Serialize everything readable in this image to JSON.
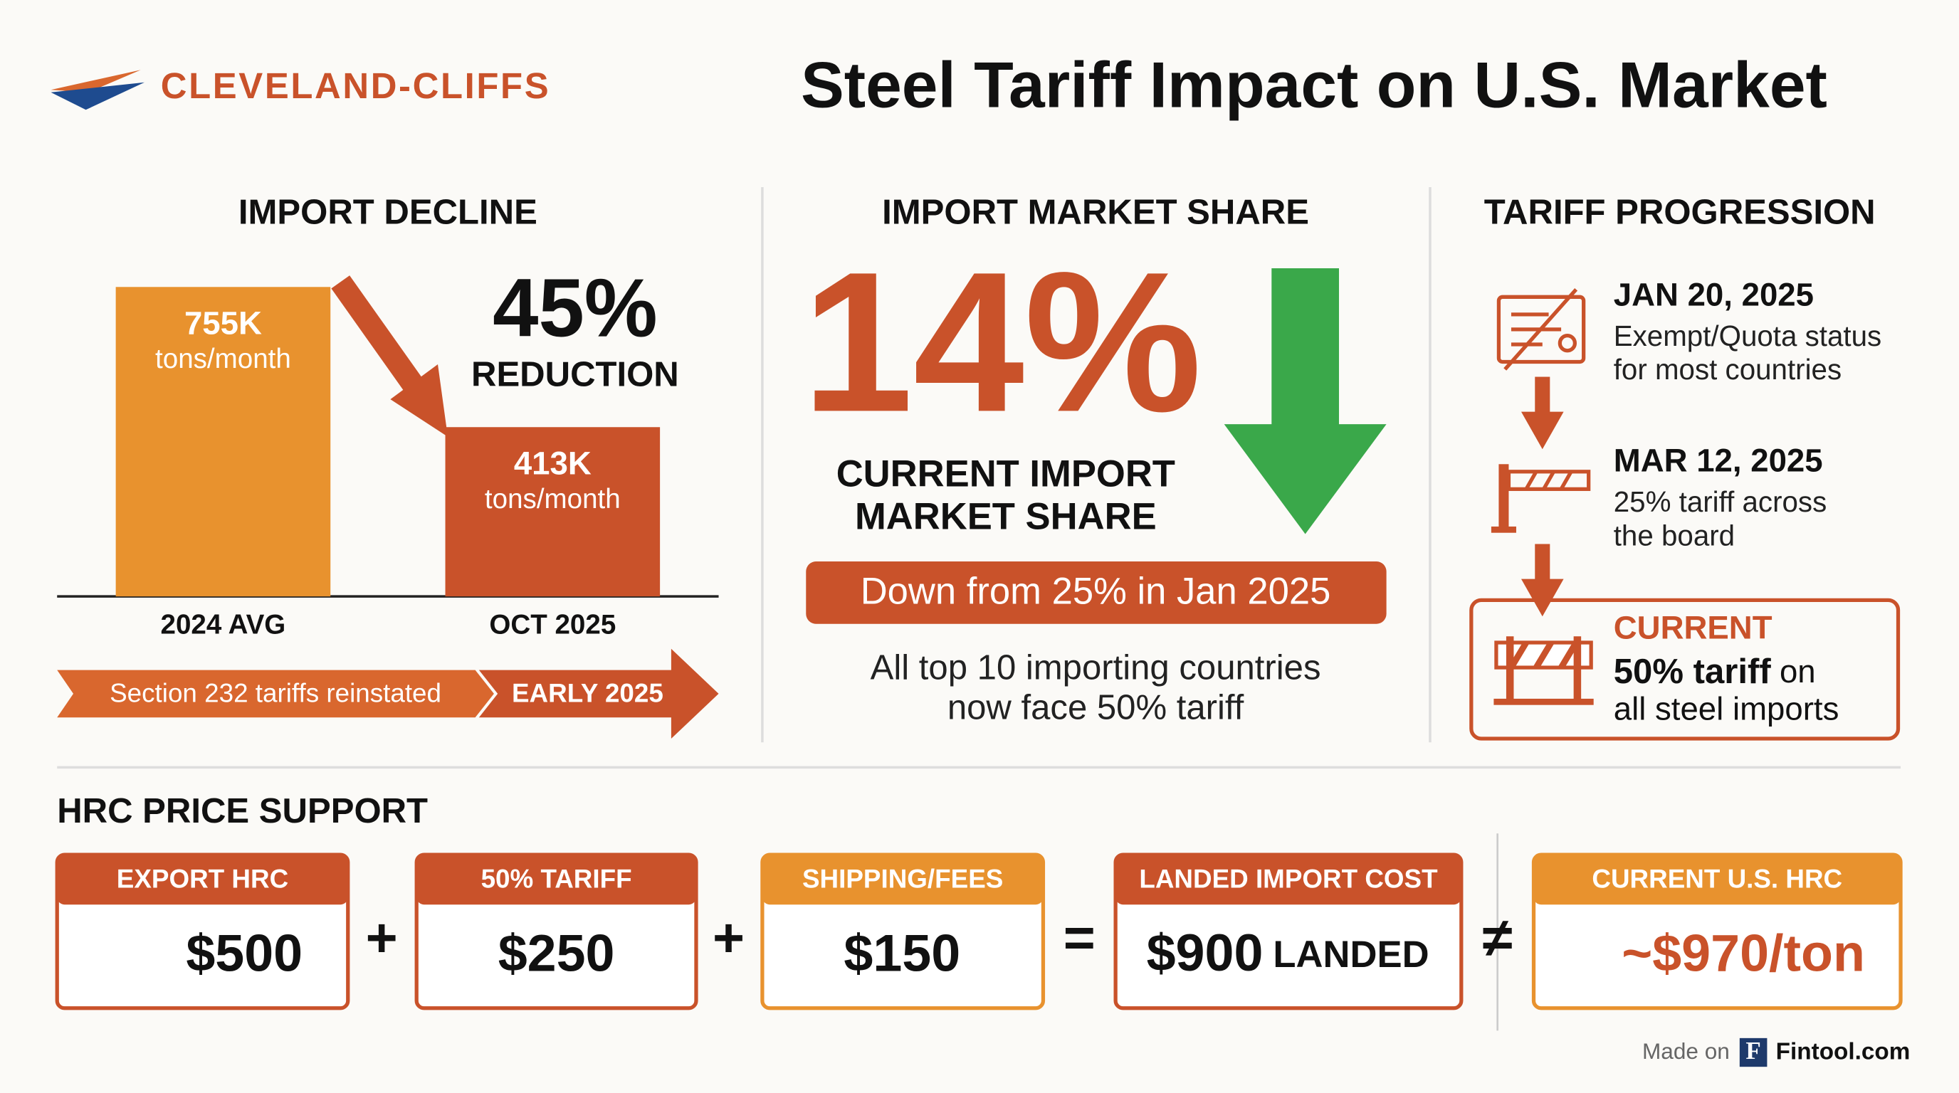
{
  "header": {
    "logo": "CLEVELAND-CLIFFS",
    "title": "Steel Tariff Impact on U.S. Market"
  },
  "import_decline": {
    "heading": "IMPORT DECLINE",
    "bars": [
      {
        "category": "2024 AVG",
        "value": 755,
        "label": "755K",
        "unit": "tons/month",
        "color": "#e8922e"
      },
      {
        "category": "OCT 2025",
        "value": 413,
        "label": "413K",
        "unit": "tons/month",
        "color": "#c9522a"
      }
    ],
    "change": "45%",
    "change_label": "REDUCTION",
    "banner": "Section 232 tariffs reinstated",
    "banner_tag": "EARLY 2025"
  },
  "market_share": {
    "heading": "IMPORT MARKET SHARE",
    "value": "14%",
    "label_lines": [
      "CURRENT IMPORT",
      "MARKET SHARE"
    ],
    "badge": "Down from 25% in Jan 2025",
    "note_lines": [
      "All top 10 importing countries",
      "now face 50% tariff"
    ]
  },
  "tariff_progression": {
    "heading": "TARIFF PROGRESSION",
    "steps": [
      {
        "date": "JAN 20, 2025",
        "lines": [
          "Exempt/Quota status",
          "for most countries"
        ]
      },
      {
        "date": "MAR 12, 2025",
        "lines": [
          "25% tariff across",
          "the board"
        ]
      }
    ],
    "current": {
      "title": "CURRENT",
      "highlight": "50% tariff",
      "text": "on",
      "line2": "all steel imports"
    }
  },
  "hrc": {
    "heading": "HRC PRICE SUPPORT",
    "boxes": [
      {
        "title": "EXPORT HRC",
        "value": "$500"
      },
      {
        "title": "50% TARIFF",
        "value": "$250"
      },
      {
        "title": "SHIPPING/FEES",
        "value": "$150"
      },
      {
        "title": "LANDED IMPORT COST",
        "value": "$900",
        "suffix": "LANDED"
      },
      {
        "title": "CURRENT U.S. HRC",
        "value": "~$970/ton"
      }
    ],
    "operators": [
      "+",
      "+",
      "=",
      "≠"
    ]
  },
  "footer": {
    "made_on": "Made on",
    "logo_letter": "F",
    "brand": "Fintool.com"
  }
}
